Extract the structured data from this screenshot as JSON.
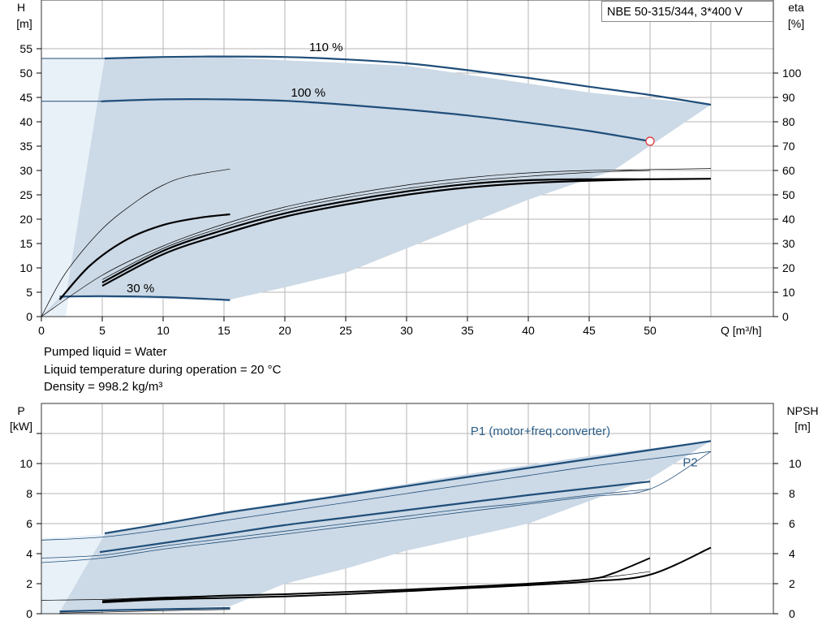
{
  "pump_label": "NBE 50-315/344, 3*400 V",
  "liquid_info": {
    "line1": "Pumped liquid = Water",
    "line2": "Liquid temperature during operation = 20 °C",
    "line3": "Density = 998.2 kg/m³"
  },
  "colors": {
    "curve": "#1f4e79",
    "area": "#ccd9e6",
    "area_light": "#e9f1f8",
    "grid": "#b5b5b5",
    "marker": "#e03030"
  },
  "chart_data": [
    {
      "type": "line",
      "xlim": [
        0,
        55
      ],
      "ylim": [
        0,
        55
      ],
      "y2lim": [
        0,
        110
      ],
      "x_ticks": [
        0,
        5,
        10,
        15,
        20,
        25,
        30,
        35,
        40,
        45,
        50
      ],
      "x_tick_labels": [
        "0",
        "5",
        "10",
        "15",
        "20",
        "25",
        "30",
        "35",
        "40",
        "45",
        "50"
      ],
      "y_ticks": [
        0,
        5,
        10,
        15,
        20,
        25,
        30,
        35,
        40,
        45,
        50,
        55
      ],
      "y_tick_labels": [
        "0",
        "5",
        "10",
        "15",
        "20",
        "25",
        "30",
        "35",
        "40",
        "45",
        "50",
        "55"
      ],
      "y2_ticks": [
        0,
        10,
        20,
        30,
        40,
        50,
        60,
        70,
        80,
        90,
        100
      ],
      "y2_tick_labels": [
        "0",
        "10",
        "20",
        "30",
        "40",
        "50",
        "60",
        "70",
        "80",
        "90",
        "100"
      ],
      "xlabel": "Q [m³/h]",
      "ylabel_line1": "H",
      "ylabel_line2": "[m]",
      "y2label_line1": "eta",
      "y2label_line2": "[%]",
      "grid": true,
      "area_light": [
        [
          0,
          0
        ],
        [
          0,
          53
        ],
        [
          5.2,
          53
        ],
        [
          2,
          0
        ]
      ],
      "area": [
        [
          0,
          0
        ],
        [
          2,
          4
        ],
        [
          5.2,
          53
        ],
        [
          15,
          53.2
        ],
        [
          30,
          51.5
        ],
        [
          45,
          46
        ],
        [
          55,
          43.5
        ],
        [
          47,
          30
        ],
        [
          40,
          24
        ],
        [
          33,
          17
        ],
        [
          25,
          9
        ],
        [
          20,
          6
        ],
        [
          15.5,
          3.5
        ],
        [
          1.5,
          4
        ],
        [
          0,
          0
        ]
      ],
      "series": [
        {
          "name": "110 %",
          "role": "head",
          "x": [
            5.2,
            10,
            15,
            20,
            25,
            30,
            35,
            40,
            45,
            50,
            55
          ],
          "y": [
            53,
            53.3,
            53.4,
            53.3,
            52.8,
            52,
            50.6,
            49,
            47.2,
            45.5,
            43.5
          ]
        },
        {
          "name": "100 %",
          "role": "head",
          "x": [
            4.9,
            10,
            15,
            20,
            25,
            30,
            35,
            40,
            45,
            50
          ],
          "y": [
            44.2,
            44.6,
            44.6,
            44.3,
            43.5,
            42.5,
            41.3,
            39.8,
            38.1,
            36
          ]
        },
        {
          "name": "30 %",
          "role": "head",
          "x": [
            1.5,
            5,
            10,
            15.5
          ],
          "y": [
            4.1,
            4.2,
            4,
            3.4
          ]
        },
        {
          "name": "",
          "role": "eta_thin",
          "x": [
            0,
            2,
            5,
            8,
            10,
            12,
            15.5
          ],
          "y": [
            0,
            9,
            18,
            24,
            27,
            28.8,
            30.3
          ]
        },
        {
          "name": "",
          "role": "eta_bold",
          "x": [
            1.5,
            4,
            7,
            10,
            13,
            15.5
          ],
          "y": [
            3.5,
            10.5,
            15.8,
            18.8,
            20.3,
            21
          ]
        },
        {
          "name": "",
          "role": "eta_thin",
          "x": [
            0,
            5,
            10,
            15,
            20,
            25,
            30,
            35,
            40,
            45,
            50,
            55
          ],
          "y": [
            0,
            8.5,
            14.5,
            19,
            22.5,
            25,
            27,
            28.5,
            29.5,
            30,
            30.2,
            30.4
          ]
        },
        {
          "name": "",
          "role": "eta_bold",
          "x": [
            5,
            10,
            15,
            20,
            25,
            30,
            35,
            40,
            45,
            50,
            55
          ],
          "y": [
            7,
            13.5,
            17.8,
            21.2,
            23.7,
            25.7,
            27.2,
            28,
            28.2,
            28.2,
            28.3
          ]
        },
        {
          "name": "",
          "role": "eta_bold",
          "x": [
            5,
            10,
            15,
            20,
            25,
            30,
            35,
            40,
            45,
            50
          ],
          "y": [
            6.3,
            12.8,
            17,
            20.5,
            23,
            25,
            26.5,
            27.4,
            27.9,
            28.2
          ]
        },
        {
          "name": "",
          "role": "eta_thin",
          "x": [
            5,
            10,
            15,
            20,
            25,
            30,
            35,
            40,
            45,
            50
          ],
          "y": [
            7.6,
            14,
            18.4,
            21.9,
            24.4,
            26.3,
            27.8,
            28.8,
            29.6,
            30
          ]
        }
      ],
      "marker": {
        "x": 50,
        "y": 36
      },
      "labels": [
        {
          "text": "110 %",
          "x": 22,
          "y": 54.5
        },
        {
          "text": "100 %",
          "x": 20.5,
          "y": 45.2
        },
        {
          "text": "30 %",
          "x": 7,
          "y": 5
        }
      ]
    },
    {
      "type": "line",
      "xlim": [
        0,
        55
      ],
      "ylim": [
        0,
        12
      ],
      "y2lim": [
        0,
        12
      ],
      "y_ticks": [
        0,
        2,
        4,
        6,
        8,
        10
      ],
      "y_tick_labels": [
        "0",
        "2",
        "4",
        "6",
        "8",
        "10"
      ],
      "y2_ticks": [
        0,
        2,
        4,
        6,
        8,
        10
      ],
      "y2_tick_labels": [
        "0",
        "2",
        "4",
        "6",
        "8",
        "10"
      ],
      "ylabel_line1": "P",
      "ylabel_line2": "[kW]",
      "y2label_line1": "NPSH",
      "y2label_line2": "[m]",
      "grid": true,
      "area_light": [
        [
          0,
          0
        ],
        [
          0,
          5
        ],
        [
          5.2,
          5.3
        ],
        [
          2,
          0
        ]
      ],
      "area": [
        [
          1.5,
          0.1
        ],
        [
          5.2,
          5.3
        ],
        [
          15,
          6.8
        ],
        [
          25,
          8
        ],
        [
          35,
          9.3
        ],
        [
          45,
          10.5
        ],
        [
          55,
          11.5
        ],
        [
          50,
          9
        ],
        [
          45,
          7.5
        ],
        [
          40,
          6
        ],
        [
          30,
          4.2
        ],
        [
          25,
          3
        ],
        [
          20,
          2
        ],
        [
          15.5,
          0.5
        ],
        [
          1.5,
          0.1
        ]
      ],
      "series": [
        {
          "name": "P1 (motor+freq.converter)",
          "role": "power",
          "x": [
            5.2,
            10,
            15,
            20,
            25,
            30,
            35,
            40,
            45,
            50,
            55
          ],
          "y": [
            5.35,
            6,
            6.7,
            7.3,
            7.9,
            8.5,
            9.1,
            9.7,
            10.3,
            10.9,
            11.5
          ]
        },
        {
          "name": "",
          "role": "power",
          "x": [
            4.8,
            10,
            15,
            20,
            25,
            30,
            35,
            40,
            45,
            50
          ],
          "y": [
            4.1,
            4.7,
            5.3,
            5.9,
            6.4,
            6.9,
            7.4,
            7.9,
            8.35,
            8.8
          ]
        },
        {
          "name": "",
          "role": "power",
          "x": [
            1.5,
            5,
            10,
            15.5
          ],
          "y": [
            0.15,
            0.22,
            0.3,
            0.38
          ]
        },
        {
          "name": "",
          "role": "power_thin",
          "x": [
            0,
            5,
            10,
            15,
            20,
            25,
            30,
            35,
            40,
            45,
            50,
            55
          ],
          "y": [
            4.9,
            5.1,
            5.6,
            6.2,
            6.8,
            7.4,
            8,
            8.6,
            9.2,
            9.8,
            10.3,
            10.8
          ]
        },
        {
          "name": "",
          "role": "power_thin",
          "x": [
            0,
            5,
            10,
            15,
            20,
            25,
            30,
            35,
            40,
            45,
            50
          ],
          "y": [
            3.7,
            3.9,
            4.5,
            5,
            5.5,
            6,
            6.5,
            7,
            7.4,
            7.9,
            8.3
          ]
        },
        {
          "name": "",
          "role": "power_thin",
          "x": [
            0,
            5,
            10,
            15,
            20,
            25,
            30,
            35,
            40,
            45,
            50,
            55
          ],
          "y": [
            3.4,
            3.7,
            4.3,
            4.8,
            5.3,
            5.8,
            6.3,
            6.8,
            7.3,
            7.8,
            8.3,
            10.8
          ]
        },
        {
          "name": "",
          "role": "npsh",
          "x": [
            5,
            10,
            15,
            20,
            25,
            30,
            35,
            40,
            45,
            50,
            55
          ],
          "y": [
            0.75,
            0.95,
            1.05,
            1.15,
            1.3,
            1.5,
            1.7,
            1.9,
            2.15,
            2.6,
            4.4
          ]
        },
        {
          "name": "",
          "role": "npsh",
          "x": [
            5,
            10,
            15,
            20,
            25,
            30,
            35,
            40,
            45,
            47,
            50
          ],
          "y": [
            0.85,
            1.05,
            1.2,
            1.3,
            1.45,
            1.6,
            1.8,
            2,
            2.3,
            2.7,
            3.7
          ]
        },
        {
          "name": "",
          "role": "npsh_thin",
          "x": [
            0,
            5,
            10,
            15,
            20,
            25,
            30,
            35,
            40,
            45,
            50
          ],
          "y": [
            0.9,
            0.95,
            1.1,
            1.2,
            1.3,
            1.45,
            1.6,
            1.8,
            2,
            2.3,
            2.8
          ]
        },
        {
          "name": "",
          "role": "npsh_thin",
          "x": [
            1.5,
            5,
            10,
            15.5
          ],
          "y": [
            0.05,
            0.1,
            0.2,
            0.28
          ]
        }
      ],
      "labels": [
        {
          "text": "P1 (motor+freq.converter)",
          "x": 41,
          "y": 11.9,
          "blue": true
        },
        {
          "text": "P2",
          "x": 53.3,
          "y": 9.8,
          "blue": true
        }
      ]
    }
  ]
}
